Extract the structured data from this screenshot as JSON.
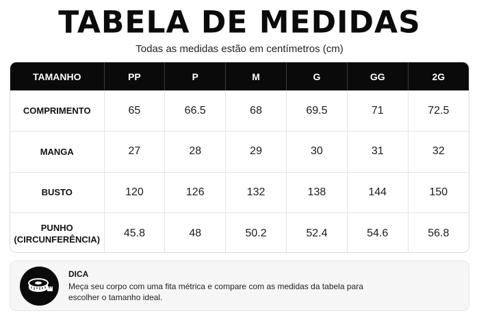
{
  "header": {
    "title": "TABELA DE MEDIDAS",
    "subtitle": "Todas as medidas estão em centímetros (cm)"
  },
  "table": {
    "columns": [
      "TAMANHO",
      "PP",
      "P",
      "M",
      "G",
      "GG",
      "2G"
    ],
    "rows": [
      {
        "label_lines": [
          "COMPRIMENTO"
        ],
        "values": [
          "65",
          "66.5",
          "68",
          "69.5",
          "71",
          "72.5"
        ]
      },
      {
        "label_lines": [
          "MANGA"
        ],
        "values": [
          "27",
          "28",
          "29",
          "30",
          "31",
          "32"
        ]
      },
      {
        "label_lines": [
          "BUSTO"
        ],
        "values": [
          "120",
          "126",
          "132",
          "138",
          "144",
          "150"
        ]
      },
      {
        "label_lines": [
          "PUNHO",
          "(CIRCUNFERÊNCIA)"
        ],
        "values": [
          "45.8",
          "48",
          "50.2",
          "52.4",
          "54.6",
          "56.8"
        ]
      }
    ]
  },
  "tip": {
    "icon": "measuring-tape-icon",
    "title": "DICA",
    "text": "Meça seu corpo com uma fita métrica e compare com as medidas da tabela para escolher o tamanho ideal."
  },
  "colors": {
    "header_bg": "#0a0a0a",
    "header_text": "#ffffff",
    "tip_bg": "#f6f6f6"
  }
}
